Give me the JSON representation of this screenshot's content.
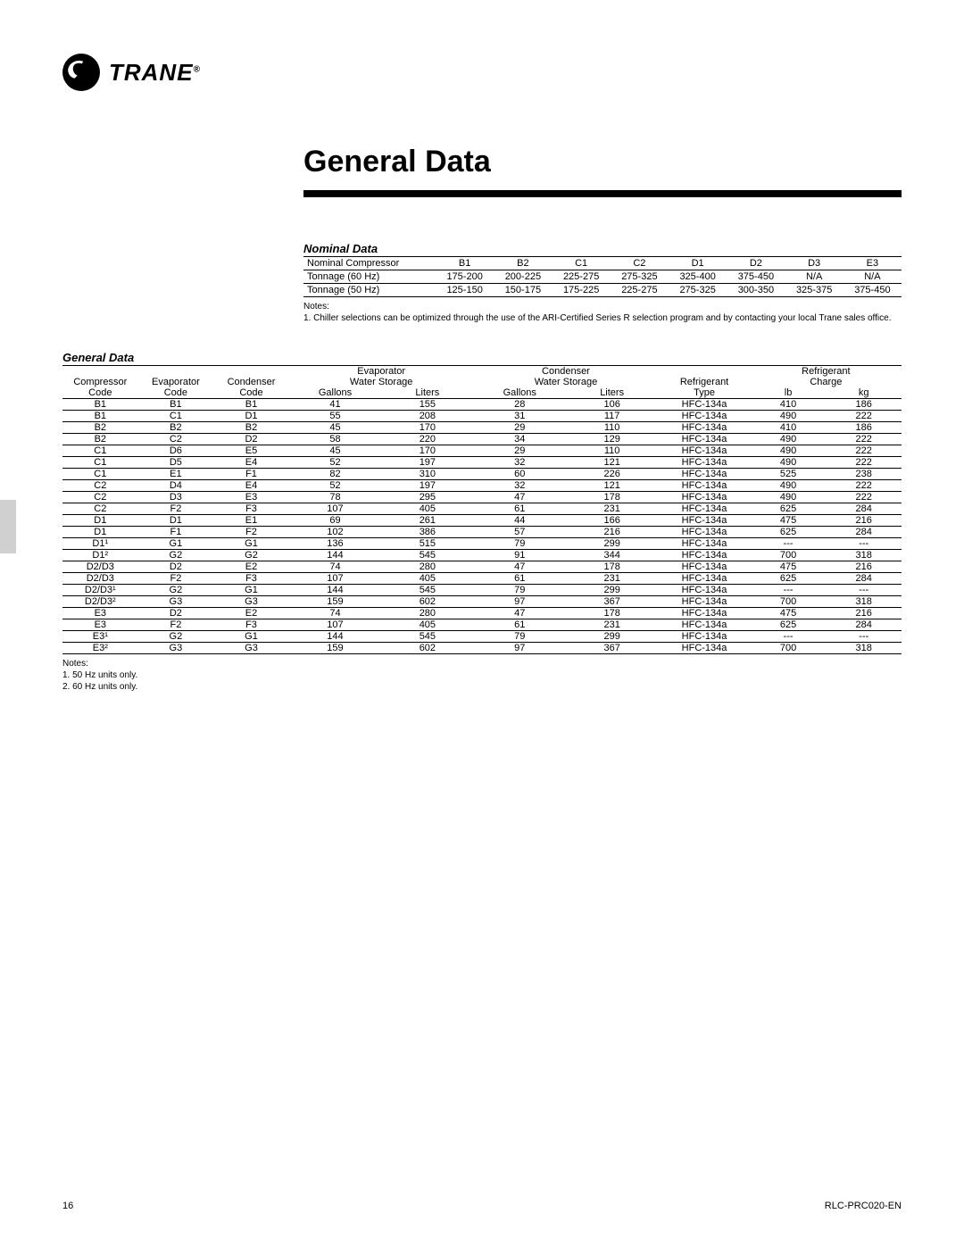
{
  "logo": {
    "brand": "TRANE",
    "reg": "®"
  },
  "page_title": "General Data",
  "nominal": {
    "title": "Nominal Data",
    "row_labels": [
      "Nominal Compressor",
      "Tonnage (60 Hz)",
      "Tonnage (50 Hz)"
    ],
    "cols": [
      "B1",
      "B2",
      "C1",
      "C2",
      "D1",
      "D2",
      "D3",
      "E3"
    ],
    "rows": [
      [
        "175-200",
        "200-225",
        "225-275",
        "275-325",
        "325-400",
        "375-450",
        "N/A",
        "N/A"
      ],
      [
        "125-150",
        "150-175",
        "175-225",
        "225-275",
        "275-325",
        "300-350",
        "325-375",
        "375-450"
      ]
    ],
    "notes_label": "Notes:",
    "notes": "1. Chiller selections can be optimized through the use of the ARI-Certified Series R selection program and by contacting your local Trane sales office."
  },
  "general": {
    "title": "General Data",
    "group_headers": [
      "",
      "",
      "",
      "Evaporator",
      "Condenser",
      "",
      "Refrigerant"
    ],
    "group_headers2": [
      "",
      "",
      "",
      "Water Storage",
      "Water Storage",
      "Refrigerant",
      "Charge"
    ],
    "headers": [
      "Compressor",
      "Evaporator",
      "Condenser",
      "",
      "",
      "",
      "",
      "",
      "",
      ""
    ],
    "subheaders": [
      "Code",
      "Code",
      "Code",
      "Gallons",
      "Liters",
      "Gallons",
      "Liters",
      "Type",
      "lb",
      "kg"
    ],
    "rows": [
      [
        "B1",
        "B1",
        "B1",
        "41",
        "155",
        "28",
        "106",
        "HFC-134a",
        "410",
        "186"
      ],
      [
        "B1",
        "C1",
        "D1",
        "55",
        "208",
        "31",
        "117",
        "HFC-134a",
        "490",
        "222"
      ],
      [
        "B2",
        "B2",
        "B2",
        "45",
        "170",
        "29",
        "110",
        "HFC-134a",
        "410",
        "186"
      ],
      [
        "B2",
        "C2",
        "D2",
        "58",
        "220",
        "34",
        "129",
        "HFC-134a",
        "490",
        "222"
      ],
      [
        "C1",
        "D6",
        "E5",
        "45",
        "170",
        "29",
        "110",
        "HFC-134a",
        "490",
        "222"
      ],
      [
        "C1",
        "D5",
        "E4",
        "52",
        "197",
        "32",
        "121",
        "HFC-134a",
        "490",
        "222"
      ],
      [
        "C1",
        "E1",
        "F1",
        "82",
        "310",
        "60",
        "226",
        "HFC-134a",
        "525",
        "238"
      ],
      [
        "C2",
        "D4",
        "E4",
        "52",
        "197",
        "32",
        "121",
        "HFC-134a",
        "490",
        "222"
      ],
      [
        "C2",
        "D3",
        "E3",
        "78",
        "295",
        "47",
        "178",
        "HFC-134a",
        "490",
        "222"
      ],
      [
        "C2",
        "F2",
        "F3",
        "107",
        "405",
        "61",
        "231",
        "HFC-134a",
        "625",
        "284"
      ],
      [
        "D1",
        "D1",
        "E1",
        "69",
        "261",
        "44",
        "166",
        "HFC-134a",
        "475",
        "216"
      ],
      [
        "D1",
        "F1",
        "F2",
        "102",
        "386",
        "57",
        "216",
        "HFC-134a",
        "625",
        "284"
      ],
      [
        "D1¹",
        "G1",
        "G1",
        "136",
        "515",
        "79",
        "299",
        "HFC-134a",
        "---",
        "---"
      ],
      [
        "D1²",
        "G2",
        "G2",
        "144",
        "545",
        "91",
        "344",
        "HFC-134a",
        "700",
        "318"
      ],
      [
        "D2/D3",
        "D2",
        "E2",
        "74",
        "280",
        "47",
        "178",
        "HFC-134a",
        "475",
        "216"
      ],
      [
        "D2/D3",
        "F2",
        "F3",
        "107",
        "405",
        "61",
        "231",
        "HFC-134a",
        "625",
        "284"
      ],
      [
        "D2/D3¹",
        "G2",
        "G1",
        "144",
        "545",
        "79",
        "299",
        "HFC-134a",
        "---",
        "---"
      ],
      [
        "D2/D3²",
        "G3",
        "G3",
        "159",
        "602",
        "97",
        "367",
        "HFC-134a",
        "700",
        "318"
      ],
      [
        "E3",
        "D2",
        "E2",
        "74",
        "280",
        "47",
        "178",
        "HFC-134a",
        "475",
        "216"
      ],
      [
        "E3",
        "F2",
        "F3",
        "107",
        "405",
        "61",
        "231",
        "HFC-134a",
        "625",
        "284"
      ],
      [
        "E3¹",
        "G2",
        "G1",
        "144",
        "545",
        "79",
        "299",
        "HFC-134a",
        "---",
        "---"
      ],
      [
        "E3²",
        "G3",
        "G3",
        "159",
        "602",
        "97",
        "367",
        "HFC-134a",
        "700",
        "318"
      ]
    ],
    "notes_label": "Notes:",
    "note1": "1. 50 Hz units only.",
    "note2": "2. 60 Hz units only."
  },
  "footer": {
    "page": "16",
    "doc": "RLC-PRC020-EN"
  }
}
